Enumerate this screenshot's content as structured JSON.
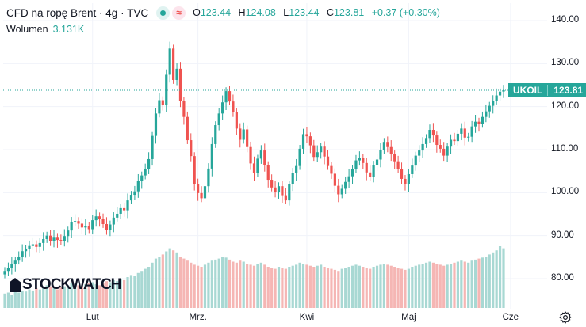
{
  "header": {
    "title": "CFD na ropę Brent · 4g · TVC",
    "ohlc": [
      {
        "k": "O",
        "v": "123.44"
      },
      {
        "k": "H",
        "v": "124.08"
      },
      {
        "k": "L",
        "v": "123.44"
      },
      {
        "k": "C",
        "v": "123.81"
      }
    ],
    "change": "+0.37 (+0.30%)"
  },
  "volume": {
    "label": "Wolumen",
    "value": "3.131K"
  },
  "price_label": {
    "symbol": "UKOIL",
    "value": "123.81"
  },
  "watermark": "STOCKWATCH",
  "colors": {
    "up": "#26a69a",
    "down": "#ef5350",
    "vol_up": "#a8d8d3",
    "vol_down": "#f5b6b4"
  },
  "icons": {
    "settings": "gear-icon"
  },
  "chart_data": {
    "type": "candlestick",
    "y_ticks": [
      "140.00",
      "130.00",
      "120.00",
      "110.00",
      "100.00",
      "90.00",
      "80.00"
    ],
    "y_tick_values": [
      140,
      130,
      120,
      110,
      100,
      90,
      80
    ],
    "ylim": [
      73.2,
      142.4
    ],
    "x_ticks": [
      "Lut",
      "Mrz.",
      "Kwi",
      "Maj",
      "Cze"
    ],
    "x_tick_index": [
      25,
      55,
      86,
      115,
      144
    ],
    "last_close": 123.81,
    "closes": [
      81.8,
      82.5,
      83.5,
      84.2,
      85.1,
      86.4,
      87.0,
      87.6,
      88.0,
      87.4,
      88.3,
      89.2,
      90.0,
      88.8,
      89.7,
      89.0,
      88.7,
      89.9,
      91.2,
      93.1,
      93.4,
      92.8,
      91.9,
      92.2,
      91.5,
      93.6,
      94.5,
      93.9,
      92.7,
      91.4,
      92.6,
      94.2,
      95.1,
      96.4,
      95.9,
      98.2,
      99.5,
      100.3,
      102.7,
      104.0,
      105.5,
      107.8,
      113.2,
      118.4,
      121.5,
      120.3,
      127.4,
      133.5,
      126.2,
      128.8,
      121.4,
      117.6,
      112.2,
      108.5,
      102.0,
      99.9,
      98.7,
      101.5,
      105.6,
      111.3,
      115.7,
      118.4,
      121.0,
      123.6,
      121.2,
      118.8,
      114.9,
      112.3,
      114.7,
      110.6,
      106.8,
      104.5,
      107.9,
      109.8,
      106.4,
      103.0,
      101.2,
      100.1,
      101.5,
      99.4,
      98.2,
      101.9,
      104.5,
      106.2,
      110.2,
      113.6,
      113.1,
      111.0,
      108.3,
      109.4,
      110.7,
      108.4,
      106.2,
      104.4,
      101.6,
      99.6,
      100.9,
      102.5,
      103.8,
      105.5,
      107.5,
      108.0,
      106.9,
      104.7,
      103.6,
      106.5,
      107.7,
      109.9,
      111.8,
      110.6,
      108.9,
      107.3,
      105.4,
      103.2,
      102.0,
      104.3,
      106.3,
      108.6,
      109.8,
      111.3,
      112.7,
      114.6,
      113.3,
      111.1,
      110.2,
      108.6,
      110.7,
      112.3,
      112.0,
      113.7,
      114.9,
      112.8,
      113.0,
      115.4,
      116.5,
      116.0,
      117.6,
      118.9,
      120.2,
      121.4,
      122.6,
      123.5,
      123.81
    ],
    "volumes": [
      14,
      15,
      13,
      16,
      15,
      17,
      16,
      18,
      17,
      19,
      18,
      20,
      22,
      21,
      19,
      18,
      20,
      21,
      22,
      24,
      23,
      22,
      21,
      23,
      24,
      25,
      23,
      22,
      24,
      26,
      25,
      27,
      26,
      28,
      27,
      30,
      32,
      31,
      34,
      36,
      38,
      40,
      44,
      48,
      50,
      52,
      55,
      58,
      56,
      54,
      50,
      48,
      46,
      44,
      42,
      41,
      40,
      42,
      44,
      46,
      47,
      48,
      50,
      49,
      47,
      45,
      44,
      46,
      45,
      43,
      42,
      41,
      43,
      44,
      42,
      40,
      39,
      38,
      40,
      39,
      38,
      40,
      41,
      42,
      44,
      43,
      42,
      41,
      40,
      41,
      42,
      40,
      39,
      38,
      37,
      36,
      38,
      39,
      40,
      41,
      42,
      41,
      40,
      39,
      38,
      40,
      41,
      42,
      43,
      42,
      41,
      40,
      39,
      38,
      37,
      38,
      40,
      41,
      42,
      43,
      44,
      45,
      44,
      43,
      42,
      41,
      42,
      43,
      44,
      45,
      46,
      45,
      44,
      46,
      47,
      48,
      49,
      50,
      52,
      54,
      56,
      60,
      58
    ]
  }
}
